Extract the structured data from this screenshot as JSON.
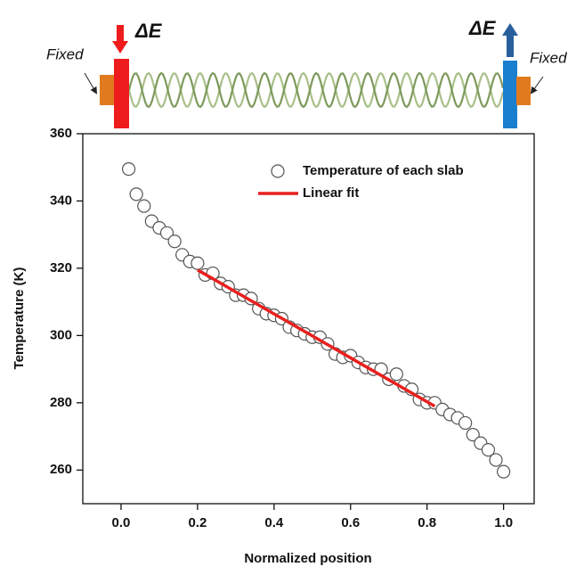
{
  "schematic": {
    "left_label": "Fixed",
    "right_label": "Fixed",
    "left_energy": "ΔE",
    "right_energy": "ΔE"
  },
  "chart_data": {
    "type": "scatter",
    "x_label": "Normalized position",
    "y_label": "Temperature (K)",
    "xlim": [
      -0.1,
      1.08
    ],
    "ylim": [
      250,
      360
    ],
    "xticks": [
      {
        "value": 0,
        "label": "0.0"
      },
      {
        "value": 0.2,
        "label": "0.2"
      },
      {
        "value": 0.4,
        "label": "0.4"
      },
      {
        "value": 0.6,
        "label": "0.6"
      },
      {
        "value": 0.8,
        "label": "0.8"
      },
      {
        "value": 1,
        "label": "1.0"
      }
    ],
    "yticks": [
      260,
      280,
      300,
      320,
      340,
      360
    ],
    "legend": "upper right",
    "series": [
      {
        "name": "Temperature of each slab",
        "mode": "markers",
        "color": "#555555",
        "x": [
          0.02,
          0.04,
          0.06,
          0.08,
          0.1,
          0.12,
          0.14,
          0.16,
          0.18,
          0.2,
          0.22,
          0.24,
          0.26,
          0.28,
          0.3,
          0.32,
          0.34,
          0.36,
          0.38,
          0.4,
          0.42,
          0.44,
          0.46,
          0.48,
          0.5,
          0.52,
          0.54,
          0.56,
          0.58,
          0.6,
          0.62,
          0.64,
          0.66,
          0.68,
          0.7,
          0.72,
          0.74,
          0.76,
          0.78,
          0.8,
          0.82,
          0.84,
          0.86,
          0.88,
          0.9,
          0.92,
          0.94,
          0.96,
          0.98,
          1.0
        ],
        "values": [
          349.5,
          342,
          338.5,
          334,
          332,
          330.5,
          328,
          324,
          322,
          321.5,
          318,
          318.5,
          315.5,
          314.5,
          312,
          312,
          311,
          308,
          306.5,
          306,
          305,
          302.5,
          301.5,
          300.5,
          299.5,
          299.5,
          297.5,
          294.5,
          293.5,
          294,
          292,
          290.5,
          290,
          290,
          287,
          288.5,
          285,
          284,
          281,
          280,
          280,
          278,
          276.5,
          275.5,
          274,
          270.5,
          268,
          266,
          263,
          259.5
        ]
      },
      {
        "name": "Linear fit",
        "mode": "line",
        "color": "#e8201e",
        "x": [
          0.2,
          0.82
        ],
        "values": [
          319.5,
          279
        ]
      }
    ]
  }
}
